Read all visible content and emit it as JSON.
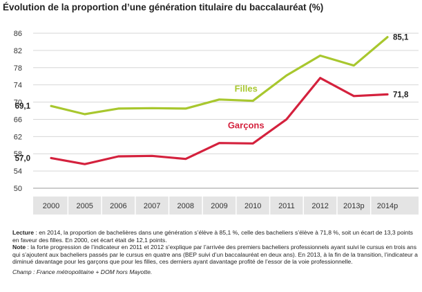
{
  "title": "Évolution de la proportion d’une génération titulaire du baccalauréat (%)",
  "chart_data": {
    "type": "line",
    "categories": [
      "2000",
      "2005",
      "2006",
      "2007",
      "2008",
      "2009",
      "2010",
      "2011",
      "2012",
      "2013p",
      "2014p"
    ],
    "ylim": [
      50,
      86
    ],
    "yticks": [
      50,
      54,
      58,
      62,
      66,
      70,
      74,
      78,
      82,
      86
    ],
    "series": [
      {
        "name": "Filles",
        "color": "#a8c72e",
        "values": [
          69.1,
          67.2,
          68.5,
          68.6,
          68.5,
          70.6,
          70.3,
          76.2,
          80.8,
          78.5,
          85.1
        ],
        "start_label": "69,1",
        "end_label": "85,1"
      },
      {
        "name": "Garçons",
        "color": "#d4213d",
        "values": [
          57.0,
          55.6,
          57.4,
          57.5,
          56.8,
          60.5,
          60.4,
          66.0,
          75.6,
          71.4,
          71.8
        ],
        "start_label": "57,0",
        "end_label": "71,8"
      }
    ]
  },
  "notes": {
    "lecture_label": "Lecture",
    "lecture_text": " : en 2014, la proportion de bachelières dans une génération s’élève à 85,1 %, celle des bacheliers s’élève à 71,8 %, soit un écart de 13,3 points en faveur des filles. En 2000, cet écart était de 12,1 points.",
    "note_label": "Note",
    "note_text": " : la forte progression de l’indicateur en 2011 et 2012 s’explique par l’arrivée des premiers bacheliers professionnels ayant suivi le cursus en trois ans qui s’ajoutent aux bacheliers passés par le cursus en quatre ans (BEP suivi d’un baccalauréat en deux ans). En 2013, à la fin de la transition, l’indicateur a diminué davantage pour les garçons que pour les filles, ces derniers ayant davantage profité de l’essor de la voie professionnelle.",
    "champ": "Champ : France métropolitaine + DOM hors Mayotte."
  }
}
